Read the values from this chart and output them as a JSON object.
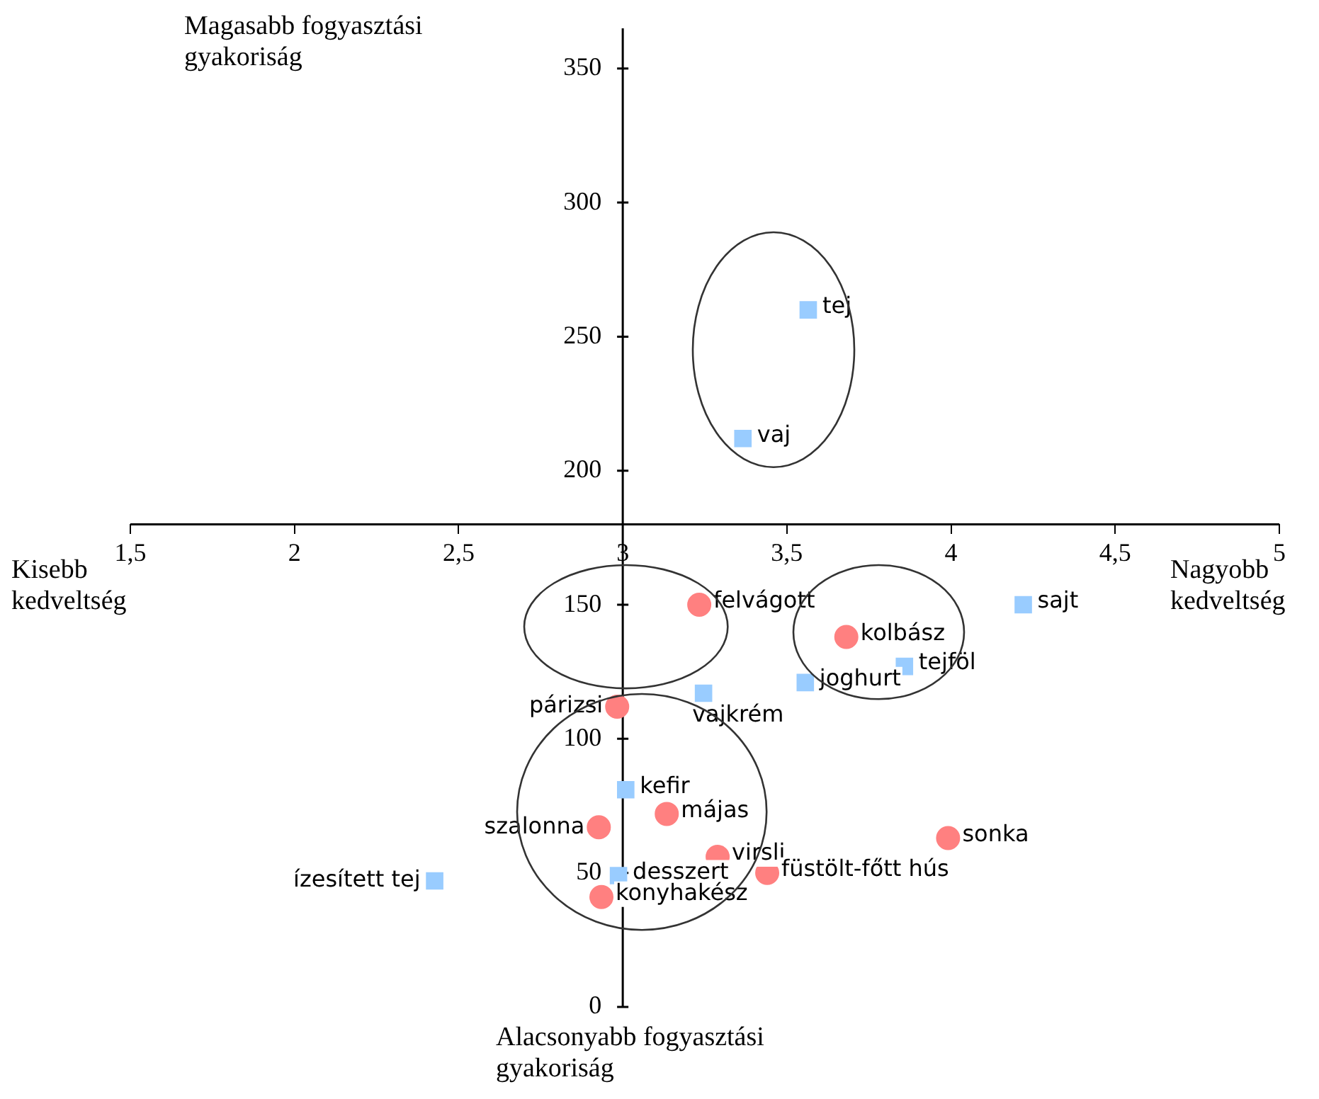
{
  "chart_data": {
    "type": "scatter",
    "xlim": [
      1.5,
      5
    ],
    "ylim": [
      0,
      365
    ],
    "xticks": [
      {
        "value": 1.5,
        "label": "1,5"
      },
      2,
      {
        "value": 2.5,
        "label": "2,5"
      },
      3,
      {
        "value": 3.5,
        "label": "3,5"
      },
      4,
      {
        "value": 4.5,
        "label": "4,5"
      },
      5
    ],
    "yticks": [
      0,
      50,
      100,
      150,
      200,
      250,
      300,
      350
    ],
    "series": [
      {
        "color": "#99ccff",
        "marker": "square",
        "x": [
          3.565,
          3.366,
          4.22,
          3.858,
          3.556,
          3.246,
          3.009,
          2.987,
          2.427
        ],
        "values": [
          260,
          212,
          150,
          127,
          121,
          117,
          81,
          49,
          47
        ]
      },
      {
        "color": "#ff8080",
        "marker": "circle",
        "x": [
          3.233,
          3.681,
          2.983,
          3.134,
          2.927,
          3.991,
          3.289,
          3.44,
          2.935
        ],
        "values": [
          150,
          138,
          112,
          72,
          67,
          63,
          56,
          50,
          41
        ]
      }
    ],
    "annotations": [
      "Magasabb fogyasztási gyakoriság",
      "Kisebb kedveltség",
      "Nagyobb kedveltség",
      "Alacsonyabb fogyasztási gyakoriság",
      {
        "text": "tej",
        "x": 3.565,
        "y": 260
      },
      {
        "text": "vaj",
        "x": 3.366,
        "y": 212
      },
      {
        "text": "sajt",
        "x": 4.22,
        "y": 150
      },
      {
        "text": "tejföl",
        "x": 3.858,
        "y": 127
      },
      {
        "text": "joghurt",
        "x": 3.556,
        "y": 121
      },
      {
        "text": "vajkrém",
        "x": 3.246,
        "y": 117
      },
      {
        "text": "kefir",
        "x": 3.009,
        "y": 81
      },
      {
        "text": "desszert",
        "x": 2.987,
        "y": 49
      },
      {
        "text": "ízesített tej",
        "x": 2.427,
        "y": 47
      },
      {
        "text": "felvágott",
        "x": 3.233,
        "y": 150
      },
      {
        "text": "kolbász",
        "x": 3.681,
        "y": 138
      },
      {
        "text": "párizsi",
        "x": 2.983,
        "y": 112
      },
      {
        "text": "májas",
        "x": 3.134,
        "y": 72
      },
      {
        "text": "szalonna",
        "x": 2.927,
        "y": 67
      },
      {
        "text": "sonka",
        "x": 3.991,
        "y": 63
      },
      {
        "text": "virsli",
        "x": 3.289,
        "y": 56
      },
      {
        "text": "füstölt-főtt hús",
        "x": 3.44,
        "y": 50
      },
      {
        "text": "konyhakész",
        "x": 2.935,
        "y": 41
      }
    ]
  }
}
